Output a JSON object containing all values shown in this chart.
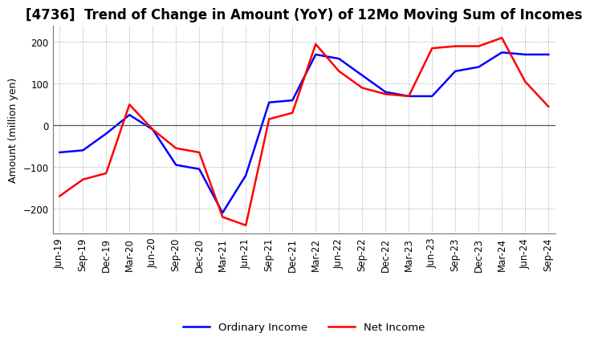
{
  "title": "[4736]  Trend of Change in Amount (YoY) of 12Mo Moving Sum of Incomes",
  "ylabel": "Amount (million yen)",
  "x_labels": [
    "Jun-19",
    "Sep-19",
    "Dec-19",
    "Mar-20",
    "Jun-20",
    "Sep-20",
    "Dec-20",
    "Mar-21",
    "Jun-21",
    "Sep-21",
    "Dec-21",
    "Mar-22",
    "Jun-22",
    "Sep-22",
    "Dec-22",
    "Mar-23",
    "Jun-23",
    "Sep-23",
    "Dec-23",
    "Mar-24",
    "Jun-24",
    "Sep-24"
  ],
  "ordinary_income": [
    -65,
    -60,
    -20,
    25,
    -10,
    -95,
    -105,
    -210,
    -120,
    55,
    60,
    170,
    160,
    120,
    80,
    70,
    70,
    130,
    140,
    175,
    170,
    170
  ],
  "net_income": [
    -170,
    -130,
    -115,
    50,
    -10,
    -55,
    -65,
    -220,
    -240,
    15,
    30,
    195,
    130,
    90,
    75,
    70,
    185,
    190,
    190,
    210,
    105,
    45
  ],
  "ordinary_color": "#0000ff",
  "net_color": "#ff0000",
  "ylim_min": -260,
  "ylim_max": 240,
  "yticks": [
    -200,
    -100,
    0,
    100,
    200
  ],
  "grid_color": "#888888",
  "bg_color": "#ffffff",
  "title_fontsize": 12,
  "label_fontsize": 9,
  "tick_fontsize": 8.5
}
